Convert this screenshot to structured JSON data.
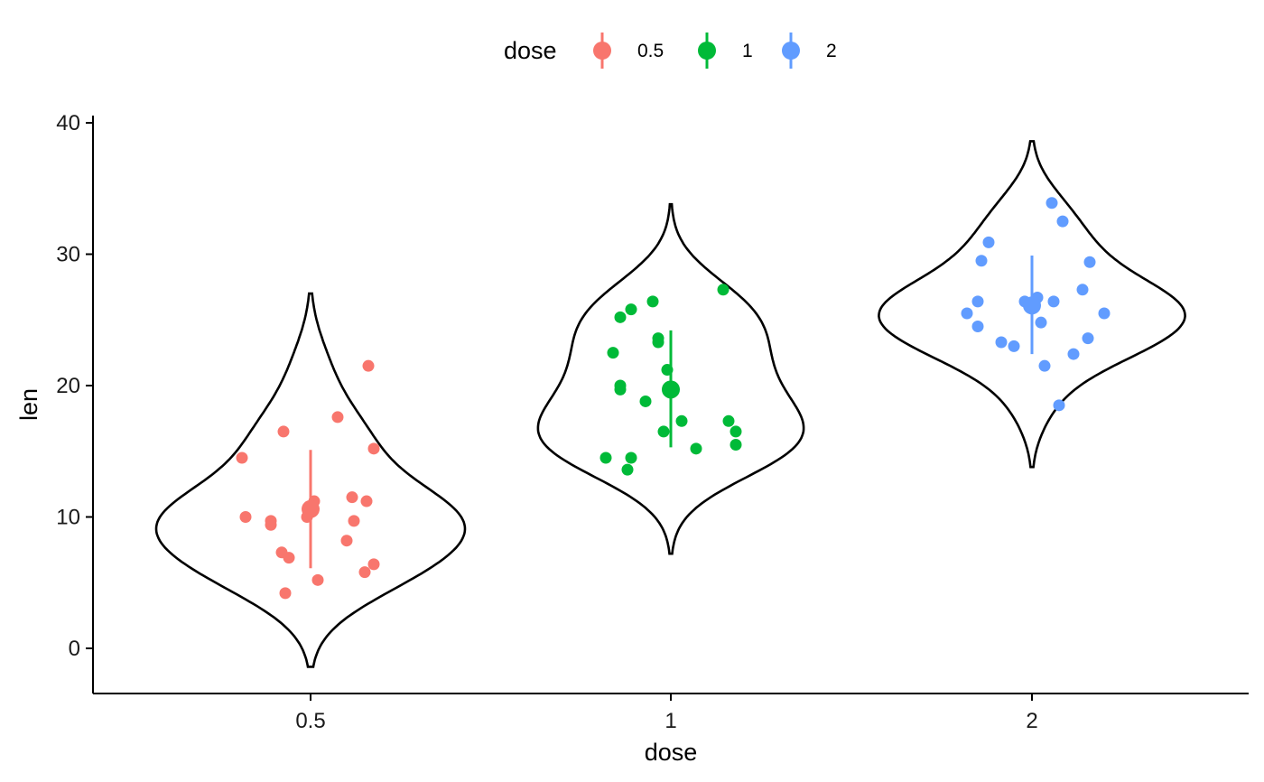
{
  "chart_data": {
    "type": "violin",
    "xlabel": "dose",
    "ylabel": "len",
    "categories": [
      "0.5",
      "1",
      "2"
    ],
    "ylim": [
      -3.5,
      40.5
    ],
    "yticks": [
      0,
      10,
      20,
      30,
      40
    ],
    "grid": false,
    "legend": {
      "title": "dose",
      "position": "top",
      "entries": [
        "0.5",
        "1",
        "2"
      ]
    },
    "colors": {
      "0.5": "#F8766D",
      "1": "#00BA38",
      "2": "#619CFF"
    },
    "series": [
      {
        "name": "0.5",
        "summary": {
          "mean": 10.6,
          "low": 6.1,
          "high": 15.1
        },
        "violin_range": [
          -1.4,
          27.0
        ],
        "points": [
          {
            "x": -0.19,
            "y": 14.5
          },
          {
            "x": -0.18,
            "y": 10.0
          },
          {
            "x": -0.11,
            "y": 9.7
          },
          {
            "x": -0.11,
            "y": 9.4
          },
          {
            "x": -0.08,
            "y": 7.3
          },
          {
            "x": -0.07,
            "y": 4.2
          },
          {
            "x": -0.06,
            "y": 6.9
          },
          {
            "x": -0.075,
            "y": 16.5
          },
          {
            "x": -0.01,
            "y": 10.0
          },
          {
            "x": 0.01,
            "y": 11.2
          },
          {
            "x": 0.02,
            "y": 5.2
          },
          {
            "x": 0.075,
            "y": 17.6
          },
          {
            "x": 0.1,
            "y": 8.2
          },
          {
            "x": 0.115,
            "y": 11.5
          },
          {
            "x": 0.12,
            "y": 9.7
          },
          {
            "x": 0.155,
            "y": 11.2
          },
          {
            "x": 0.15,
            "y": 5.8
          },
          {
            "x": 0.16,
            "y": 21.5
          },
          {
            "x": 0.175,
            "y": 15.2
          },
          {
            "x": 0.175,
            "y": 6.4
          }
        ]
      },
      {
        "name": "1",
        "summary": {
          "mean": 19.7,
          "low": 15.3,
          "high": 24.2
        },
        "violin_range": [
          7.2,
          33.8
        ],
        "points": [
          {
            "x": -0.18,
            "y": 14.5
          },
          {
            "x": -0.16,
            "y": 22.5
          },
          {
            "x": -0.14,
            "y": 25.2
          },
          {
            "x": -0.14,
            "y": 19.7
          },
          {
            "x": -0.14,
            "y": 20.0
          },
          {
            "x": -0.12,
            "y": 13.6
          },
          {
            "x": -0.11,
            "y": 25.8
          },
          {
            "x": -0.11,
            "y": 14.5
          },
          {
            "x": -0.07,
            "y": 18.8
          },
          {
            "x": -0.05,
            "y": 26.4
          },
          {
            "x": -0.035,
            "y": 23.6
          },
          {
            "x": -0.035,
            "y": 23.3
          },
          {
            "x": -0.02,
            "y": 16.5
          },
          {
            "x": -0.01,
            "y": 21.2
          },
          {
            "x": 0.03,
            "y": 17.3
          },
          {
            "x": 0.07,
            "y": 15.2
          },
          {
            "x": 0.145,
            "y": 27.3
          },
          {
            "x": 0.16,
            "y": 17.3
          },
          {
            "x": 0.18,
            "y": 16.5
          },
          {
            "x": 0.18,
            "y": 15.5
          }
        ]
      },
      {
        "name": "2",
        "summary": {
          "mean": 26.1,
          "low": 22.4,
          "high": 29.9
        },
        "violin_range": [
          13.8,
          38.6
        ],
        "points": [
          {
            "x": -0.18,
            "y": 25.5
          },
          {
            "x": -0.15,
            "y": 24.5
          },
          {
            "x": -0.15,
            "y": 26.4
          },
          {
            "x": -0.14,
            "y": 29.5
          },
          {
            "x": -0.12,
            "y": 30.9
          },
          {
            "x": -0.085,
            "y": 23.3
          },
          {
            "x": -0.05,
            "y": 23.0
          },
          {
            "x": -0.02,
            "y": 26.4
          },
          {
            "x": 0.015,
            "y": 26.7
          },
          {
            "x": 0.025,
            "y": 24.8
          },
          {
            "x": 0.035,
            "y": 21.5
          },
          {
            "x": 0.055,
            "y": 33.9
          },
          {
            "x": 0.06,
            "y": 26.4
          },
          {
            "x": 0.075,
            "y": 18.5
          },
          {
            "x": 0.085,
            "y": 32.5
          },
          {
            "x": 0.115,
            "y": 22.4
          },
          {
            "x": 0.14,
            "y": 27.3
          },
          {
            "x": 0.155,
            "y": 23.6
          },
          {
            "x": 0.16,
            "y": 29.4
          },
          {
            "x": 0.2,
            "y": 25.5
          }
        ]
      }
    ]
  }
}
